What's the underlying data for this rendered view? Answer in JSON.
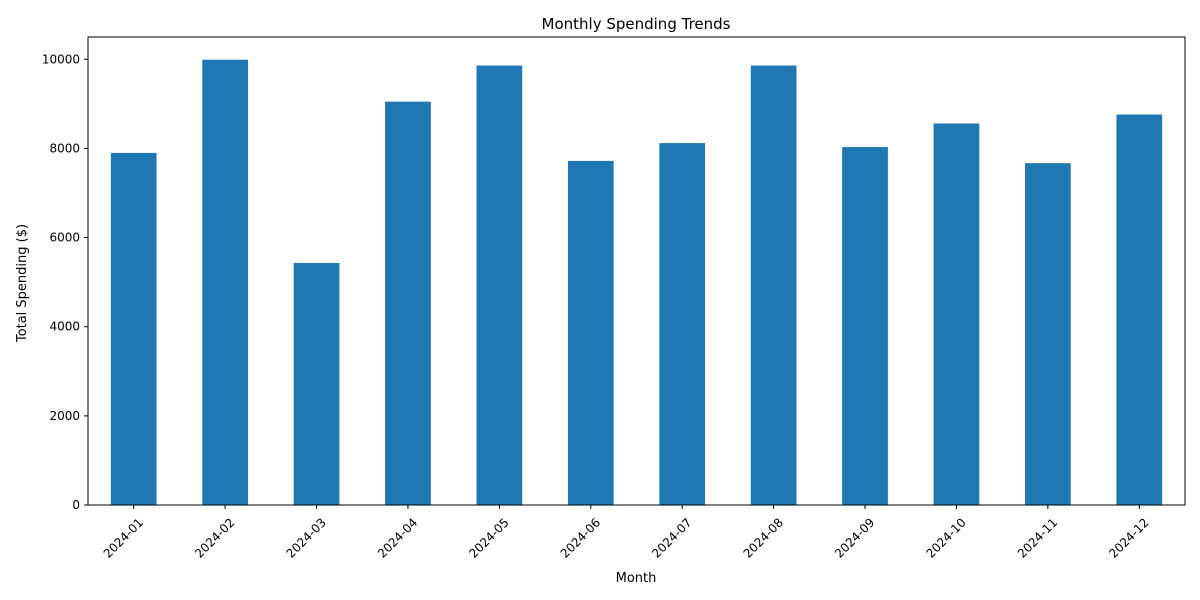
{
  "chart_data": {
    "type": "bar",
    "title": "Monthly Spending Trends",
    "xlabel": "Month",
    "ylabel": "Total Spending ($)",
    "categories": [
      "2024-01",
      "2024-02",
      "2024-03",
      "2024-04",
      "2024-05",
      "2024-06",
      "2024-07",
      "2024-08",
      "2024-09",
      "2024-10",
      "2024-11",
      "2024-12"
    ],
    "values": [
      7900,
      9990,
      5430,
      9050,
      9860,
      7720,
      8120,
      9860,
      8030,
      8560,
      7670,
      8760
    ],
    "ylim": [
      0,
      10500
    ],
    "yticks": [
      0,
      2000,
      4000,
      6000,
      8000,
      10000
    ],
    "bar_color": "#1f77b4",
    "grid": false,
    "legend": "none"
  }
}
